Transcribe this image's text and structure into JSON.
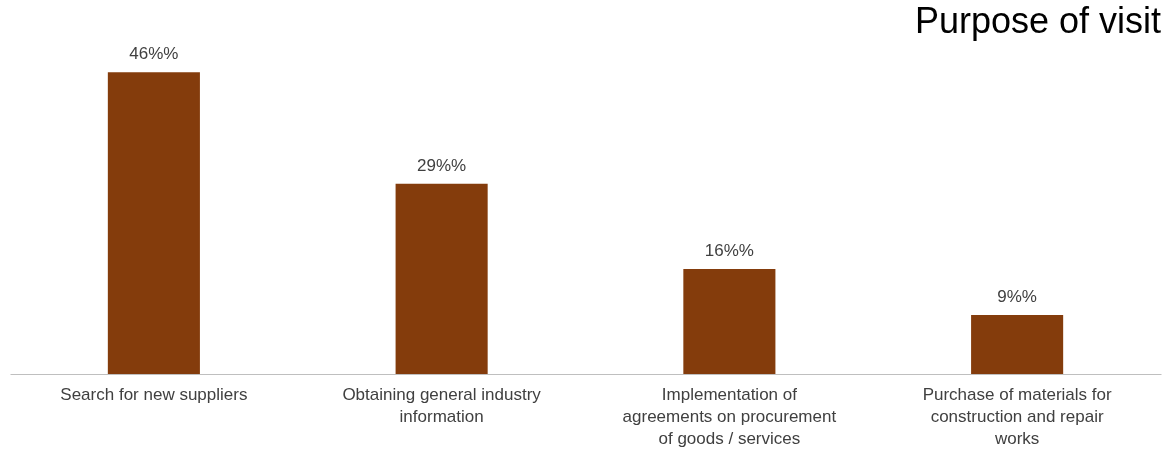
{
  "chart_data": {
    "type": "bar",
    "title": "Purpose of visit",
    "categories": [
      "Search for new suppliers",
      "Obtaining general industry information",
      "Implementation of agreements on procurement of goods / services",
      "Purchase of materials for construction and repair works"
    ],
    "values": [
      46,
      29,
      16,
      9
    ],
    "value_labels": [
      "46%%",
      "29%%",
      "16%%",
      "9%%"
    ],
    "color": "#843c0c"
  }
}
